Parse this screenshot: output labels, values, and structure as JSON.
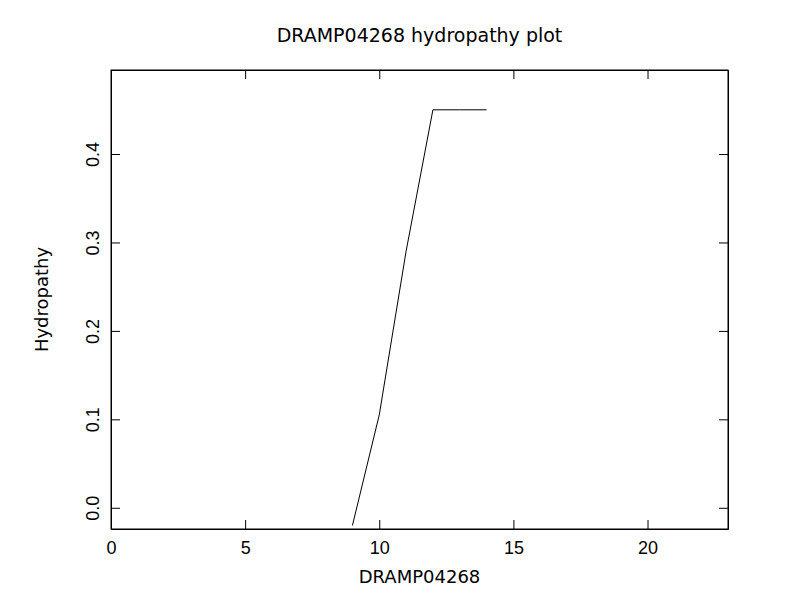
{
  "chart_data": {
    "type": "line",
    "title": "DRAMP04268 hydropathy plot",
    "x_label": "DRAMP04268",
    "y_label": "Hydropathy",
    "x": [
      9,
      10,
      11,
      12,
      13,
      14
    ],
    "values": [
      -0.02,
      0.105,
      0.29,
      0.45,
      0.45,
      0.45
    ],
    "color": "#000000",
    "xlim": [
      0,
      23
    ],
    "xticks": [
      0,
      5,
      10,
      15,
      20
    ],
    "ylim": [
      -0.024,
      0.495
    ],
    "yticks": [
      {
        "value": 0,
        "label": "0.0"
      },
      {
        "value": 0.1,
        "label": "0.1"
      },
      {
        "value": 0.2,
        "label": "0.2"
      },
      {
        "value": 0.3,
        "label": "0.3"
      },
      {
        "value": 0.4,
        "label": "0.4"
      }
    ],
    "grid": false
  }
}
